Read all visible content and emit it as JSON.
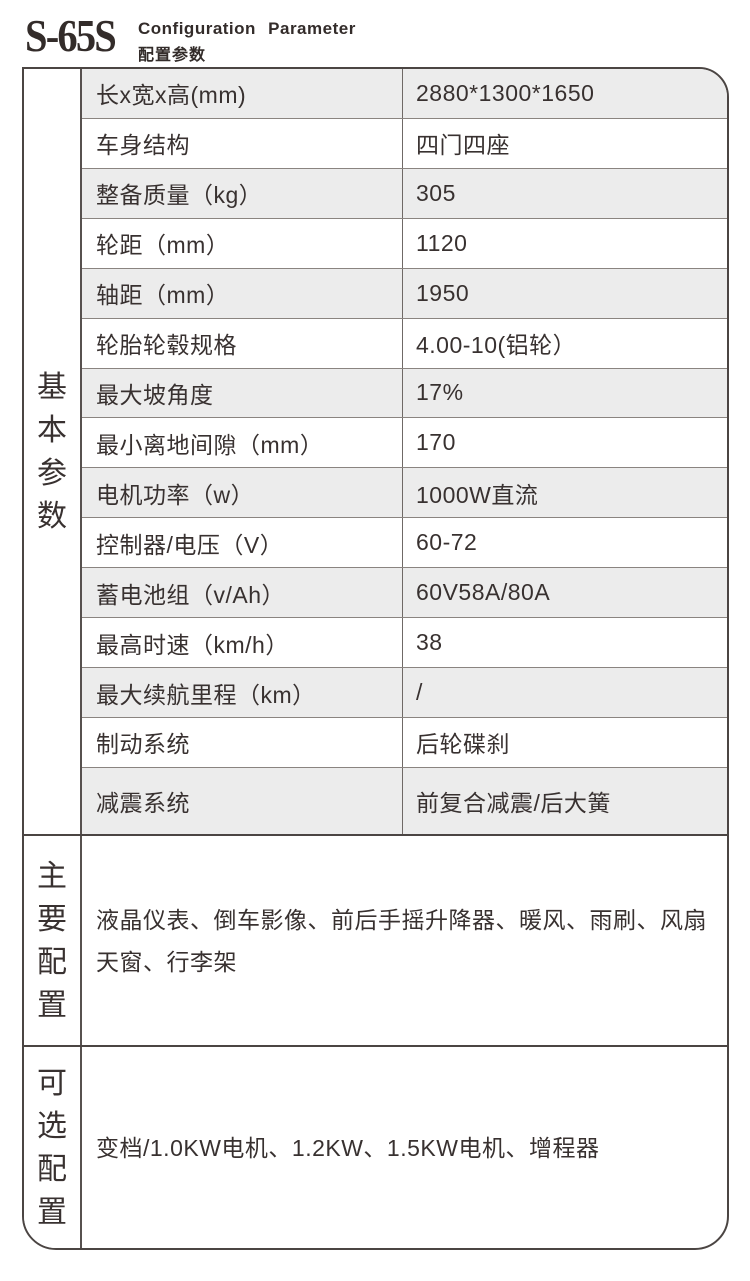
{
  "header": {
    "model": "S-65S",
    "subtitle_en": "Configuration Parameter",
    "subtitle_zh": "配置参数"
  },
  "spec_table": {
    "group_labels": {
      "basic": "基本参数",
      "main_config": "主要配置",
      "optional_config": "可选配置"
    },
    "rows": [
      {
        "label": "长x宽x高(mm)",
        "value": "2880*1300*1650"
      },
      {
        "label": "车身结构",
        "value": "四门四座"
      },
      {
        "label": "整备质量（kg）",
        "value": "305"
      },
      {
        "label": "轮距（mm）",
        "value": "1120"
      },
      {
        "label": "轴距（mm）",
        "value": "1950"
      },
      {
        "label": "轮胎轮毂规格",
        "value": "4.00-10(铝轮）"
      },
      {
        "label": "最大坡角度",
        "value": "17%"
      },
      {
        "label": "最小离地间隙（mm）",
        "value": "170"
      },
      {
        "label": "电机功率（w）",
        "value": "1000W直流"
      },
      {
        "label": "控制器/电压（V）",
        "value": "60-72"
      },
      {
        "label": "蓄电池组（v/Ah）",
        "value": "60V58A/80A"
      },
      {
        "label": "最高时速（km/h）",
        "value": "38"
      },
      {
        "label": "最大续航里程（km）",
        "value": "/"
      },
      {
        "label": "制动系统",
        "value": "后轮碟刹"
      },
      {
        "label": "减震系统",
        "value": "前复合减震/后大簧"
      }
    ],
    "main_config_text": "液晶仪表、倒车影像、前后手摇升降器、暖风、雨刷、风扇天窗、行李架",
    "optional_config_text": "变档/1.0KW电机、1.2KW、1.5KW电机、增程器"
  },
  "colors": {
    "row_stripe": "#ececec",
    "border_dark": "#4b4543",
    "border_light": "#8a8480",
    "text": "#383130"
  }
}
